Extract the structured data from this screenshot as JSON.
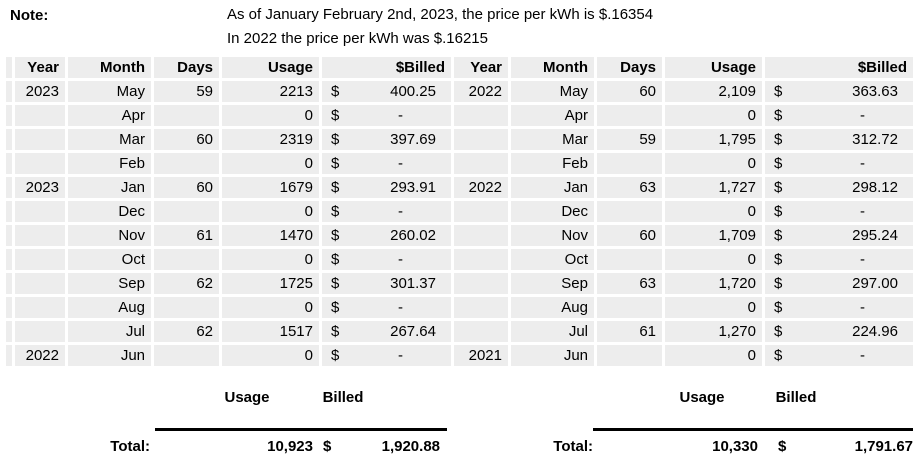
{
  "note": {
    "label": "Note:",
    "line1": "As of January February 2nd, 2023, the price per kWh is $.16354",
    "line2": "In 2022 the price per kWh was $.16215"
  },
  "table": {
    "headers": [
      "Year",
      "Month",
      "Days",
      "Usage",
      "$Billed",
      "Year",
      "Month",
      "Days",
      "Usage",
      "$Billed"
    ],
    "currency_symbol": "$",
    "rows": [
      {
        "year": "2023",
        "month": "May",
        "days": "59",
        "usage": "2213",
        "billed": "400.25",
        "year2": "2022",
        "month2": "May",
        "days2": "60",
        "usage2": "2,109",
        "billed2": "363.63"
      },
      {
        "year": "",
        "month": "Apr",
        "days": "",
        "usage": "0",
        "billed": "-",
        "year2": "",
        "month2": "Apr",
        "days2": "",
        "usage2": "0",
        "billed2": "-"
      },
      {
        "year": "",
        "month": "Mar",
        "days": "60",
        "usage": "2319",
        "billed": "397.69",
        "year2": "",
        "month2": "Mar",
        "days2": "59",
        "usage2": "1,795",
        "billed2": "312.72"
      },
      {
        "year": "",
        "month": "Feb",
        "days": "",
        "usage": "0",
        "billed": "-",
        "year2": "",
        "month2": "Feb",
        "days2": "",
        "usage2": "0",
        "billed2": "-"
      },
      {
        "year": "2023",
        "month": "Jan",
        "days": "60",
        "usage": "1679",
        "billed": "293.91",
        "year2": "2022",
        "month2": "Jan",
        "days2": "63",
        "usage2": "1,727",
        "billed2": "298.12"
      },
      {
        "year": "",
        "month": "Dec",
        "days": "",
        "usage": "0",
        "billed": "-",
        "year2": "",
        "month2": "Dec",
        "days2": "",
        "usage2": "0",
        "billed2": "-"
      },
      {
        "year": "",
        "month": "Nov",
        "days": "61",
        "usage": "1470",
        "billed": "260.02",
        "year2": "",
        "month2": "Nov",
        "days2": "60",
        "usage2": "1,709",
        "billed2": "295.24"
      },
      {
        "year": "",
        "month": "Oct",
        "days": "",
        "usage": "0",
        "billed": "-",
        "year2": "",
        "month2": "Oct",
        "days2": "",
        "usage2": "0",
        "billed2": "-"
      },
      {
        "year": "",
        "month": "Sep",
        "days": "62",
        "usage": "1725",
        "billed": "301.37",
        "year2": "",
        "month2": "Sep",
        "days2": "63",
        "usage2": "1,720",
        "billed2": "297.00"
      },
      {
        "year": "",
        "month": "Aug",
        "days": "",
        "usage": "0",
        "billed": "-",
        "year2": "",
        "month2": "Aug",
        "days2": "",
        "usage2": "0",
        "billed2": "-"
      },
      {
        "year": "",
        "month": "Jul",
        "days": "62",
        "usage": "1517",
        "billed": "267.64",
        "year2": "",
        "month2": "Jul",
        "days2": "61",
        "usage2": "1,270",
        "billed2": "224.96"
      },
      {
        "year": "2022",
        "month": "Jun",
        "days": "",
        "usage": "0",
        "billed": "-",
        "year2": "2021",
        "month2": "Jun",
        "days2": "",
        "usage2": "0",
        "billed2": "-"
      }
    ]
  },
  "totals": {
    "left": {
      "usage_header": "Usage",
      "billed_header": "Billed",
      "label": "Total:",
      "usage": "10,923",
      "currency": "$",
      "billed": "1,920.88"
    },
    "right": {
      "usage_header": "Usage",
      "billed_header": "Billed",
      "label": "Total:",
      "usage": "10,330",
      "currency": "$",
      "billed": "1,791.67"
    }
  },
  "colors": {
    "cell_fill": "#ededed",
    "gridline": "#ffffff",
    "text": "#000000",
    "total_rule": "#000000"
  }
}
